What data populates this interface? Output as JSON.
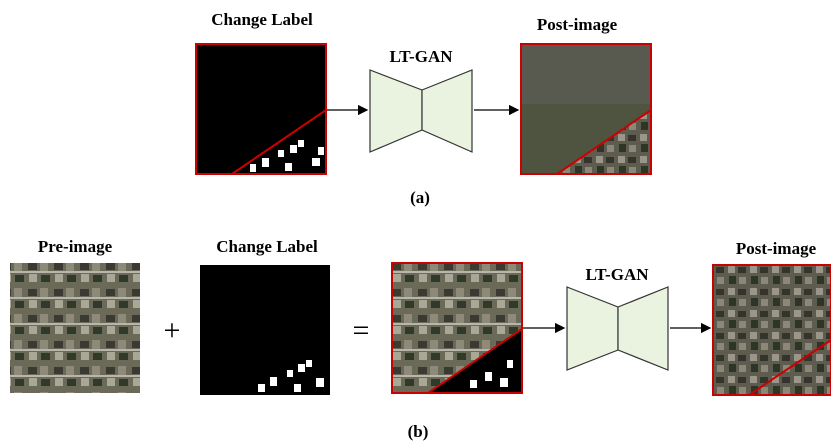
{
  "panel_a": {
    "change_label_title": "Change Label",
    "model": "LT-GAN",
    "post_image_title": "Post-image",
    "caption": "(a)"
  },
  "panel_b": {
    "pre_image_title": "Pre-image",
    "plus": "+",
    "change_label_title": "Change Label",
    "equals": "=",
    "model": "LT-GAN",
    "post_image_title": "Post-image",
    "caption": "(b)"
  }
}
